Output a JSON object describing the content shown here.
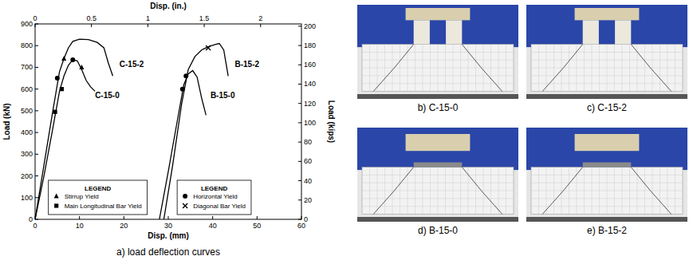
{
  "chart_data": {
    "type": "line",
    "caption": "a) load deflection curves",
    "x_label": "Disp. (mm)",
    "x2_label": "Disp. (in.)",
    "y_label": "Load (kN)",
    "y2_label": "Load (kips)",
    "xlim": [
      0,
      60
    ],
    "xticks": [
      0,
      10,
      20,
      30,
      40,
      50,
      60
    ],
    "x2lim": [
      0,
      2.3622
    ],
    "x2ticks": [
      0,
      0.5,
      1,
      1.5,
      2
    ],
    "ylim": [
      0,
      900
    ],
    "yticks": [
      0,
      100,
      200,
      300,
      400,
      500,
      600,
      700,
      800,
      900
    ],
    "y2lim": [
      0,
      202.33
    ],
    "y2ticks": [
      0,
      20,
      40,
      60,
      80,
      100,
      120,
      140,
      160,
      180,
      200
    ],
    "grid": false,
    "series": [
      {
        "name": "C-15-2",
        "color": "#000000",
        "line_style": "solid",
        "x": [
          0,
          2,
          4,
          5.5,
          6.5,
          7.5,
          8.5,
          10,
          12,
          14,
          15.5,
          16.5,
          17.5
        ],
        "values": [
          0,
          250,
          500,
          680,
          740,
          790,
          820,
          830,
          828,
          815,
          790,
          720,
          660
        ]
      },
      {
        "name": "C-15-0",
        "color": "#000000",
        "line_style": "solid",
        "x": [
          0,
          2,
          4,
          5.5,
          6.5,
          7.5,
          8.5,
          9.5,
          10.5,
          11.5,
          12.5,
          13.5
        ],
        "values": [
          0,
          200,
          420,
          590,
          660,
          710,
          735,
          730,
          690,
          640,
          610,
          590
        ]
      },
      {
        "name": "B-15-2",
        "color": "#000000",
        "line_style": "solid",
        "x": [
          29,
          31,
          33,
          34.5,
          36,
          37.5,
          39,
          40.5,
          41.5,
          42.5,
          43.5
        ],
        "values": [
          0,
          250,
          530,
          690,
          750,
          780,
          795,
          805,
          810,
          780,
          660
        ]
      },
      {
        "name": "B-15-0",
        "color": "#000000",
        "line_style": "solid",
        "x": [
          28,
          30,
          32,
          33.5,
          34.5,
          35.5,
          36.5,
          37.5,
          38.5
        ],
        "values": [
          0,
          220,
          450,
          620,
          670,
          685,
          655,
          560,
          480
        ]
      }
    ],
    "annotations": [
      {
        "text": "C-15-2",
        "x": 19,
        "y": 700
      },
      {
        "text": "C-15-0",
        "x": 13.5,
        "y": 560
      },
      {
        "text": "B-15-2",
        "x": 45,
        "y": 700
      },
      {
        "text": "B-15-0",
        "x": 39.5,
        "y": 560
      }
    ],
    "legends": [
      {
        "title": "LEGEND",
        "series": [
          {
            "name": "Stirrup Yield",
            "type": "scatter",
            "marker": "triangle",
            "color": "#000000",
            "x": [
              6.5,
              10.5
            ],
            "values": [
              740,
              700
            ]
          },
          {
            "name": "Main Longitudinal Bar Yield",
            "type": "scatter",
            "marker": "square",
            "color": "#000000",
            "x": [
              4.5,
              6
            ],
            "values": [
              495,
              600
            ]
          }
        ]
      },
      {
        "title": "LEGEND",
        "series": [
          {
            "name": "Horizontal Yield",
            "type": "scatter",
            "marker": "circle",
            "color": "#000000",
            "x": [
              5,
              8.5,
              33.2,
              34
            ],
            "values": [
              650,
              735,
              600,
              660
            ]
          },
          {
            "name": "Diagonal Bar Yield",
            "type": "scatter",
            "marker": "x",
            "color": "#000000",
            "x": [
              39
            ],
            "values": [
              790
            ]
          }
        ]
      }
    ]
  },
  "photos": [
    {
      "caption": "b) C-15-0"
    },
    {
      "caption": "c) C-15-2"
    },
    {
      "caption": "d) B-15-0"
    },
    {
      "caption": "e) B-15-2"
    }
  ]
}
